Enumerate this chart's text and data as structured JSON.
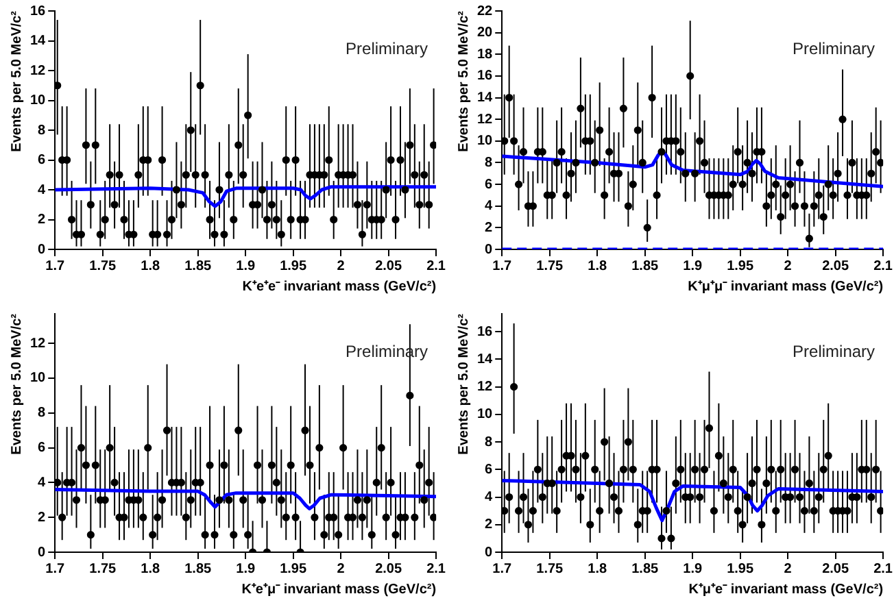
{
  "chart_data": [
    {
      "type": "scatter",
      "xlabel": "K⁺e⁺e⁻ invariant mass (GeV/c²)",
      "ylabel": "Events per 5.0 MeV/c²",
      "annotations": [
        "Preliminary"
      ],
      "xlim": [
        1.7,
        2.1
      ],
      "xticks": [
        1.7,
        1.75,
        1.8,
        1.85,
        1.9,
        1.95,
        2,
        2.05,
        2.1
      ],
      "ylim": [
        0,
        16
      ],
      "yticks": [
        0,
        2,
        4,
        6,
        8,
        10,
        12,
        14,
        16
      ],
      "x": [
        1.7025,
        1.7075,
        1.7125,
        1.7175,
        1.7225,
        1.7275,
        1.7325,
        1.7375,
        1.7425,
        1.7475,
        1.7525,
        1.7575,
        1.7625,
        1.7675,
        1.7725,
        1.7775,
        1.7825,
        1.7875,
        1.7925,
        1.7975,
        1.8025,
        1.8075,
        1.8125,
        1.8175,
        1.8225,
        1.8275,
        1.8325,
        1.8375,
        1.8425,
        1.8475,
        1.8525,
        1.8575,
        1.8625,
        1.8675,
        1.8725,
        1.8775,
        1.8825,
        1.8875,
        1.8925,
        1.8975,
        1.9025,
        1.9075,
        1.9125,
        1.9175,
        1.9225,
        1.9275,
        1.9325,
        1.9375,
        1.9425,
        1.9475,
        1.9525,
        1.9575,
        1.9625,
        1.9675,
        1.9725,
        1.9775,
        1.9825,
        1.9875,
        1.9925,
        1.9975,
        2.0025,
        2.0075,
        2.0125,
        2.0175,
        2.0225,
        2.0275,
        2.0325,
        2.0375,
        2.0425,
        2.0475,
        2.0525,
        2.0575,
        2.0625,
        2.0675,
        2.0725,
        2.0775,
        2.0825,
        2.0875,
        2.0925,
        2.0975
      ],
      "series": [
        {
          "marker": "circle",
          "color": "#000000",
          "values": [
            11,
            6,
            6,
            2,
            1,
            1,
            7,
            3,
            7,
            1,
            2,
            5,
            3,
            5,
            2,
            1,
            1,
            5,
            6,
            6,
            1,
            1,
            6,
            1,
            2,
            4,
            3,
            5,
            8,
            5,
            11,
            5,
            2,
            1,
            4,
            1,
            5,
            2,
            7,
            5,
            9,
            3,
            3,
            4,
            2,
            3,
            2,
            1,
            6,
            2,
            6,
            2,
            2,
            5,
            5,
            5,
            5,
            6,
            2,
            5,
            5,
            5,
            5,
            3,
            1,
            3,
            2,
            2,
            2,
            4,
            6,
            2,
            6,
            4,
            7,
            5,
            3,
            5,
            3,
            7
          ],
          "errors": [
            [
              7.7,
              15.4
            ],
            [
              3.6,
              9.6
            ],
            [
              3.6,
              9.6
            ],
            [
              0.7,
              4.6
            ],
            [
              0.2,
              3.3
            ],
            [
              0.2,
              3.3
            ],
            [
              4.4,
              10.8
            ],
            [
              1.4,
              5.9
            ],
            [
              4.4,
              10.8
            ],
            [
              0.2,
              3.3
            ],
            [
              0.7,
              4.6
            ],
            [
              2.8,
              8.4
            ],
            [
              1.4,
              5.9
            ],
            [
              2.8,
              8.4
            ],
            [
              0.7,
              4.6
            ],
            [
              0.2,
              3.3
            ],
            [
              0.2,
              3.3
            ],
            [
              2.8,
              8.4
            ],
            [
              3.6,
              9.6
            ],
            [
              3.6,
              9.6
            ],
            [
              0.2,
              3.3
            ],
            [
              0.2,
              3.3
            ],
            [
              3.6,
              9.6
            ],
            [
              0.2,
              3.3
            ],
            [
              0.7,
              4.6
            ],
            [
              2.1,
              7.2
            ],
            [
              1.4,
              5.9
            ],
            [
              2.8,
              8.4
            ],
            [
              5.2,
              11.9
            ],
            [
              2.8,
              8.4
            ],
            [
              7.7,
              15.4
            ],
            [
              2.8,
              8.4
            ],
            [
              0.7,
              4.6
            ],
            [
              0.2,
              3.3
            ],
            [
              2.1,
              7.2
            ],
            [
              0.2,
              3.3
            ],
            [
              2.8,
              8.4
            ],
            [
              0.7,
              4.6
            ],
            [
              4.4,
              10.8
            ],
            [
              2.8,
              8.4
            ],
            [
              6.1,
              13.1
            ],
            [
              1.4,
              5.9
            ],
            [
              1.4,
              5.9
            ],
            [
              2.1,
              7.2
            ],
            [
              0.7,
              4.6
            ],
            [
              1.4,
              5.9
            ],
            [
              0.7,
              4.6
            ],
            [
              0.2,
              3.3
            ],
            [
              3.6,
              9.6
            ],
            [
              0.7,
              4.6
            ],
            [
              3.6,
              9.6
            ],
            [
              0.7,
              4.6
            ],
            [
              0.7,
              4.6
            ],
            [
              2.8,
              8.4
            ],
            [
              2.8,
              8.4
            ],
            [
              2.8,
              8.4
            ],
            [
              2.8,
              8.4
            ],
            [
              3.6,
              9.6
            ],
            [
              0.7,
              4.6
            ],
            [
              2.8,
              8.4
            ],
            [
              2.8,
              8.4
            ],
            [
              2.8,
              8.4
            ],
            [
              2.8,
              8.4
            ],
            [
              1.4,
              5.9
            ],
            [
              0.2,
              3.3
            ],
            [
              1.4,
              5.9
            ],
            [
              0.7,
              4.6
            ],
            [
              0.7,
              4.6
            ],
            [
              0.7,
              4.6
            ],
            [
              2.1,
              7.2
            ],
            [
              3.6,
              9.6
            ],
            [
              0.7,
              4.6
            ],
            [
              3.6,
              9.6
            ],
            [
              2.1,
              7.2
            ],
            [
              4.4,
              10.8
            ],
            [
              2.8,
              8.4
            ],
            [
              1.4,
              5.9
            ],
            [
              2.8,
              8.4
            ],
            [
              1.4,
              5.9
            ],
            [
              4.4,
              10.8
            ]
          ]
        },
        {
          "type": "line",
          "marker": "none",
          "color": "#0000ff",
          "x": [
            1.7,
            1.8,
            1.84,
            1.855,
            1.862,
            1.868,
            1.874,
            1.88,
            1.89,
            1.95,
            1.958,
            1.963,
            1.968,
            1.973,
            1.98,
            1.99,
            2.1
          ],
          "values": [
            4.0,
            4.1,
            4.0,
            3.8,
            3.2,
            2.9,
            3.2,
            3.9,
            4.1,
            4.1,
            4.0,
            3.6,
            3.4,
            3.6,
            4.0,
            4.2,
            4.2
          ]
        }
      ]
    },
    {
      "type": "scatter",
      "xlabel": "K⁺μ⁺μ⁻ invariant mass (GeV/c²)",
      "ylabel": "Events per 5.0 MeV/c²",
      "annotations": [
        "Preliminary"
      ],
      "xlim": [
        1.7,
        2.1
      ],
      "xticks": [
        1.7,
        1.75,
        1.8,
        1.85,
        1.9,
        1.95,
        2,
        2.05,
        2.1
      ],
      "ylim": [
        0,
        22
      ],
      "yticks": [
        0,
        2,
        4,
        6,
        8,
        10,
        12,
        14,
        16,
        18,
        20,
        22
      ],
      "x": [
        1.7025,
        1.7075,
        1.7125,
        1.7175,
        1.7225,
        1.7275,
        1.7325,
        1.7375,
        1.7425,
        1.7475,
        1.7525,
        1.7575,
        1.7625,
        1.7675,
        1.7725,
        1.7775,
        1.7825,
        1.7875,
        1.7925,
        1.7975,
        1.8025,
        1.8075,
        1.8125,
        1.8175,
        1.8225,
        1.8275,
        1.8325,
        1.8375,
        1.8425,
        1.8475,
        1.8525,
        1.8575,
        1.8625,
        1.8675,
        1.8725,
        1.8775,
        1.8825,
        1.8875,
        1.8925,
        1.8975,
        1.9025,
        1.9075,
        1.9125,
        1.9175,
        1.9225,
        1.9275,
        1.9325,
        1.9375,
        1.9425,
        1.9475,
        1.9525,
        1.9575,
        1.9625,
        1.9675,
        1.9725,
        1.9775,
        1.9825,
        1.9875,
        1.9925,
        1.9975,
        2.0025,
        2.0075,
        2.0125,
        2.0175,
        2.0225,
        2.0275,
        2.0325,
        2.0375,
        2.0425,
        2.0475,
        2.0525,
        2.0575,
        2.0625,
        2.0675,
        2.0725,
        2.0775,
        2.0825,
        2.0875,
        2.0925,
        2.0975
      ],
      "series": [
        {
          "marker": "circle",
          "color": "#000000",
          "values": [
            10,
            14,
            10,
            6,
            9,
            4,
            4,
            9,
            9,
            5,
            5,
            8,
            9,
            5,
            7,
            8,
            13,
            10,
            10,
            8,
            11,
            5,
            9,
            7,
            7,
            13,
            4,
            6,
            11,
            8,
            2,
            14,
            5,
            9,
            10,
            10,
            10,
            9,
            7,
            16,
            7,
            10,
            8,
            5,
            5,
            5,
            5,
            5,
            6,
            9,
            6,
            8,
            7,
            9,
            9,
            4,
            5,
            6,
            3,
            5,
            6,
            4,
            8,
            4,
            1,
            4,
            5,
            3,
            6,
            5,
            7,
            12,
            5,
            8,
            5,
            5,
            5,
            7,
            9,
            8
          ],
          "errors": [
            [
              6.9,
              14.3
            ],
            [
              10.3,
              18.8
            ],
            [
              6.9,
              14.3
            ],
            [
              3.6,
              9.6
            ],
            [
              6.1,
              13.1
            ],
            [
              2.1,
              7.2
            ],
            [
              2.1,
              7.2
            ],
            [
              6.1,
              13.1
            ],
            [
              6.1,
              13.1
            ],
            [
              2.8,
              8.4
            ],
            [
              2.8,
              8.4
            ],
            [
              5.2,
              11.9
            ],
            [
              6.1,
              13.1
            ],
            [
              2.8,
              8.4
            ],
            [
              4.4,
              10.8
            ],
            [
              5.2,
              11.9
            ],
            [
              9.4,
              17.7
            ],
            [
              6.9,
              14.3
            ],
            [
              6.9,
              14.3
            ],
            [
              5.2,
              11.9
            ],
            [
              7.7,
              15.4
            ],
            [
              2.8,
              8.4
            ],
            [
              6.1,
              13.1
            ],
            [
              4.4,
              10.8
            ],
            [
              4.4,
              10.8
            ],
            [
              9.4,
              17.7
            ],
            [
              2.1,
              7.2
            ],
            [
              3.6,
              9.6
            ],
            [
              7.7,
              15.4
            ],
            [
              5.2,
              11.9
            ],
            [
              0.7,
              4.6
            ],
            [
              10.3,
              18.8
            ],
            [
              2.8,
              8.4
            ],
            [
              6.1,
              13.1
            ],
            [
              6.9,
              14.3
            ],
            [
              6.9,
              14.3
            ],
            [
              6.9,
              14.3
            ],
            [
              6.1,
              13.1
            ],
            [
              4.4,
              10.8
            ],
            [
              12.0,
              21.1
            ],
            [
              4.4,
              10.8
            ],
            [
              6.9,
              14.3
            ],
            [
              5.2,
              11.9
            ],
            [
              2.8,
              8.4
            ],
            [
              2.8,
              8.4
            ],
            [
              2.8,
              8.4
            ],
            [
              2.8,
              8.4
            ],
            [
              2.8,
              8.4
            ],
            [
              3.6,
              9.6
            ],
            [
              6.1,
              13.1
            ],
            [
              3.6,
              9.6
            ],
            [
              5.2,
              11.9
            ],
            [
              4.4,
              10.8
            ],
            [
              6.1,
              13.1
            ],
            [
              6.1,
              13.1
            ],
            [
              2.1,
              7.2
            ],
            [
              2.8,
              8.4
            ],
            [
              3.6,
              9.6
            ],
            [
              1.4,
              5.9
            ],
            [
              2.8,
              8.4
            ],
            [
              3.6,
              9.6
            ],
            [
              2.1,
              7.2
            ],
            [
              5.2,
              11.9
            ],
            [
              2.1,
              7.2
            ],
            [
              0.2,
              3.3
            ],
            [
              2.1,
              7.2
            ],
            [
              2.8,
              8.4
            ],
            [
              1.4,
              5.9
            ],
            [
              3.6,
              9.6
            ],
            [
              2.8,
              8.4
            ],
            [
              4.4,
              10.8
            ],
            [
              8.6,
              16.6
            ],
            [
              2.8,
              8.4
            ],
            [
              5.2,
              11.9
            ],
            [
              2.8,
              8.4
            ],
            [
              2.8,
              8.4
            ],
            [
              2.8,
              8.4
            ],
            [
              4.4,
              10.8
            ],
            [
              6.1,
              13.1
            ],
            [
              5.2,
              11.9
            ]
          ]
        },
        {
          "type": "line",
          "marker": "none",
          "color": "#0000ff",
          "x": [
            1.7,
            1.8,
            1.85,
            1.858,
            1.864,
            1.868,
            1.872,
            1.878,
            1.89,
            1.95,
            1.958,
            1.963,
            1.967,
            1.971,
            1.976,
            1.99,
            2.1
          ],
          "values": [
            8.6,
            8.0,
            7.6,
            7.8,
            8.7,
            9.1,
            8.7,
            7.8,
            7.3,
            6.9,
            7.2,
            7.9,
            8.2,
            7.9,
            7.2,
            6.6,
            5.8
          ]
        },
        {
          "type": "line",
          "marker": "none",
          "line_style": "dashed",
          "color": "#0000ff",
          "x": [
            1.7,
            2.1
          ],
          "values": [
            0,
            0
          ]
        }
      ]
    },
    {
      "type": "scatter",
      "xlabel": "K⁺e⁺μ⁻ invariant mass (GeV/c²)",
      "ylabel": "Events per 5.0 MeV/c²",
      "annotations": [
        "Preliminary"
      ],
      "xlim": [
        1.7,
        2.1
      ],
      "xticks": [
        1.7,
        1.75,
        1.8,
        1.85,
        1.9,
        1.95,
        2,
        2.05,
        2.1
      ],
      "ylim": [
        0,
        13.7
      ],
      "yticks": [
        0,
        2,
        4,
        6,
        8,
        10,
        12
      ],
      "x": [
        1.7025,
        1.7075,
        1.7125,
        1.7175,
        1.7225,
        1.7275,
        1.7325,
        1.7375,
        1.7425,
        1.7475,
        1.7525,
        1.7575,
        1.7625,
        1.7675,
        1.7725,
        1.7775,
        1.7825,
        1.7875,
        1.7925,
        1.7975,
        1.8025,
        1.8075,
        1.8125,
        1.8175,
        1.8225,
        1.8275,
        1.8325,
        1.8375,
        1.8425,
        1.8475,
        1.8525,
        1.8575,
        1.8625,
        1.8675,
        1.8725,
        1.8775,
        1.8825,
        1.8875,
        1.8925,
        1.8975,
        1.9025,
        1.9075,
        1.9125,
        1.9175,
        1.9225,
        1.9275,
        1.9325,
        1.9375,
        1.9425,
        1.9475,
        1.9525,
        1.9575,
        1.9625,
        1.9675,
        1.9725,
        1.9775,
        1.9825,
        1.9875,
        1.9925,
        1.9975,
        2.0025,
        2.0075,
        2.0125,
        2.0175,
        2.0225,
        2.0275,
        2.0325,
        2.0375,
        2.0425,
        2.0475,
        2.0525,
        2.0575,
        2.0625,
        2.0675,
        2.0725,
        2.0775,
        2.0825,
        2.0875,
        2.0925,
        2.0975
      ],
      "series": [
        {
          "marker": "circle",
          "color": "#000000",
          "values": [
            4,
            2,
            4,
            4,
            3,
            6,
            5,
            1,
            5,
            3,
            3,
            6,
            4,
            2,
            2,
            3,
            3,
            3,
            2,
            6,
            1,
            2,
            3,
            7,
            4,
            4,
            4,
            2,
            3,
            4,
            4,
            1,
            5,
            1,
            3,
            5,
            3,
            1,
            7,
            3,
            1,
            0,
            5,
            3,
            0,
            5,
            4,
            3,
            2,
            5,
            2,
            0,
            7,
            5,
            2,
            6,
            1,
            2,
            2,
            1,
            6,
            2,
            2,
            3,
            2,
            3,
            1,
            4,
            6,
            2,
            4,
            1,
            2,
            2,
            9,
            2,
            5,
            3,
            4,
            2
          ],
          "errors": [
            [
              2.1,
              7.2
            ],
            [
              0.7,
              4.6
            ],
            [
              2.1,
              7.2
            ],
            [
              2.1,
              7.2
            ],
            [
              1.4,
              5.9
            ],
            [
              3.6,
              9.6
            ],
            [
              2.8,
              8.4
            ],
            [
              0.2,
              3.3
            ],
            [
              2.8,
              8.4
            ],
            [
              1.4,
              5.9
            ],
            [
              1.4,
              5.9
            ],
            [
              3.6,
              9.6
            ],
            [
              2.1,
              7.2
            ],
            [
              0.7,
              4.6
            ],
            [
              0.7,
              4.6
            ],
            [
              1.4,
              5.9
            ],
            [
              1.4,
              5.9
            ],
            [
              1.4,
              5.9
            ],
            [
              0.7,
              4.6
            ],
            [
              3.6,
              9.6
            ],
            [
              0.2,
              3.3
            ],
            [
              0.7,
              4.6
            ],
            [
              1.4,
              5.9
            ],
            [
              4.4,
              10.8
            ],
            [
              2.1,
              7.2
            ],
            [
              2.1,
              7.2
            ],
            [
              2.1,
              7.2
            ],
            [
              0.7,
              4.6
            ],
            [
              1.4,
              5.9
            ],
            [
              2.1,
              7.2
            ],
            [
              2.1,
              7.2
            ],
            [
              0.2,
              3.3
            ],
            [
              2.8,
              8.4
            ],
            [
              0.2,
              3.3
            ],
            [
              1.4,
              5.9
            ],
            [
              2.8,
              8.4
            ],
            [
              1.4,
              5.9
            ],
            [
              0.2,
              3.3
            ],
            [
              4.4,
              10.8
            ],
            [
              1.4,
              5.9
            ],
            [
              0.2,
              3.3
            ],
            [
              0,
              1.8
            ],
            [
              2.8,
              8.4
            ],
            [
              1.4,
              5.9
            ],
            [
              0,
              1.8
            ],
            [
              2.8,
              8.4
            ],
            [
              2.1,
              7.2
            ],
            [
              1.4,
              5.9
            ],
            [
              0.7,
              4.6
            ],
            [
              2.8,
              8.4
            ],
            [
              0.7,
              4.6
            ],
            [
              0,
              1.8
            ],
            [
              4.4,
              10.8
            ],
            [
              2.8,
              8.4
            ],
            [
              0.7,
              4.6
            ],
            [
              3.6,
              9.6
            ],
            [
              0.2,
              3.3
            ],
            [
              0.7,
              4.6
            ],
            [
              0.7,
              4.6
            ],
            [
              0.2,
              3.3
            ],
            [
              3.6,
              9.6
            ],
            [
              0.7,
              4.6
            ],
            [
              0.7,
              4.6
            ],
            [
              1.4,
              5.9
            ],
            [
              0.7,
              4.6
            ],
            [
              1.4,
              5.9
            ],
            [
              0.2,
              3.3
            ],
            [
              2.1,
              7.2
            ],
            [
              3.6,
              9.6
            ],
            [
              0.7,
              4.6
            ],
            [
              2.1,
              7.2
            ],
            [
              0.2,
              3.3
            ],
            [
              0.7,
              4.6
            ],
            [
              0.7,
              4.6
            ],
            [
              6.1,
              13.1
            ],
            [
              0.7,
              4.6
            ],
            [
              2.8,
              8.4
            ],
            [
              1.4,
              5.9
            ],
            [
              2.1,
              7.2
            ],
            [
              0.7,
              4.6
            ]
          ]
        },
        {
          "type": "line",
          "marker": "none",
          "color": "#0000ff",
          "x": [
            1.7,
            1.8,
            1.85,
            1.857,
            1.863,
            1.868,
            1.873,
            1.88,
            1.89,
            1.95,
            1.957,
            1.963,
            1.967,
            1.972,
            1.978,
            1.99,
            2.1
          ],
          "values": [
            3.6,
            3.5,
            3.5,
            3.3,
            2.9,
            2.6,
            2.9,
            3.3,
            3.4,
            3.4,
            3.1,
            2.7,
            2.5,
            2.7,
            3.1,
            3.3,
            3.2
          ]
        }
      ]
    },
    {
      "type": "scatter",
      "xlabel": "K⁺μ⁺e⁻ invariant mass (GeV/c²)",
      "ylabel": "Events per 5.0 MeV/c²",
      "annotations": [
        "Preliminary"
      ],
      "xlim": [
        1.7,
        2.1
      ],
      "xticks": [
        1.7,
        1.75,
        1.8,
        1.85,
        1.9,
        1.95,
        2,
        2.05,
        2.1
      ],
      "ylim": [
        0,
        17.3
      ],
      "yticks": [
        0,
        2,
        4,
        6,
        8,
        10,
        12,
        14,
        16
      ],
      "x": [
        1.7025,
        1.7075,
        1.7125,
        1.7175,
        1.7225,
        1.7275,
        1.7325,
        1.7375,
        1.7425,
        1.7475,
        1.7525,
        1.7575,
        1.7625,
        1.7675,
        1.7725,
        1.7775,
        1.7825,
        1.7875,
        1.7925,
        1.7975,
        1.8025,
        1.8075,
        1.8125,
        1.8175,
        1.8225,
        1.8275,
        1.8325,
        1.8375,
        1.8425,
        1.8475,
        1.8525,
        1.8575,
        1.8625,
        1.8675,
        1.8725,
        1.8775,
        1.8825,
        1.8875,
        1.8925,
        1.8975,
        1.9025,
        1.9075,
        1.9125,
        1.9175,
        1.9225,
        1.9275,
        1.9325,
        1.9375,
        1.9425,
        1.9475,
        1.9525,
        1.9575,
        1.9625,
        1.9675,
        1.9725,
        1.9775,
        1.9825,
        1.9875,
        1.9925,
        1.9975,
        2.0025,
        2.0075,
        2.0125,
        2.0175,
        2.0225,
        2.0275,
        2.0325,
        2.0375,
        2.0425,
        2.0475,
        2.0525,
        2.0575,
        2.0625,
        2.0675,
        2.0725,
        2.0775,
        2.0825,
        2.0875,
        2.0925,
        2.0975
      ],
      "series": [
        {
          "marker": "circle",
          "color": "#000000",
          "values": [
            3,
            4,
            12,
            3,
            4,
            2,
            3,
            6,
            4,
            5,
            5,
            3,
            6,
            7,
            7,
            6,
            4,
            7,
            2,
            6,
            3,
            8,
            5,
            4,
            3,
            6,
            8,
            6,
            2,
            3,
            3,
            6,
            6,
            1,
            3,
            1,
            5,
            6,
            4,
            4,
            6,
            4,
            6,
            9,
            3,
            7,
            5,
            4,
            6,
            3,
            2,
            4,
            5,
            6,
            2,
            5,
            6,
            3,
            6,
            4,
            4,
            6,
            4,
            3,
            5,
            3,
            4,
            6,
            7,
            3,
            3,
            3,
            3,
            4,
            4,
            6,
            6,
            4,
            6,
            3
          ],
          "errors": [
            [
              1.4,
              5.9
            ],
            [
              2.1,
              7.2
            ],
            [
              8.6,
              16.6
            ],
            [
              1.4,
              5.9
            ],
            [
              2.1,
              7.2
            ],
            [
              0.7,
              4.6
            ],
            [
              1.4,
              5.9
            ],
            [
              3.6,
              9.6
            ],
            [
              2.1,
              7.2
            ],
            [
              2.8,
              8.4
            ],
            [
              2.8,
              8.4
            ],
            [
              1.4,
              5.9
            ],
            [
              3.6,
              9.6
            ],
            [
              4.4,
              10.8
            ],
            [
              4.4,
              10.8
            ],
            [
              3.6,
              9.6
            ],
            [
              2.1,
              7.2
            ],
            [
              4.4,
              10.8
            ],
            [
              0.7,
              4.6
            ],
            [
              3.6,
              9.6
            ],
            [
              1.4,
              5.9
            ],
            [
              5.2,
              11.9
            ],
            [
              2.8,
              8.4
            ],
            [
              2.1,
              7.2
            ],
            [
              1.4,
              5.9
            ],
            [
              3.6,
              9.6
            ],
            [
              5.2,
              11.9
            ],
            [
              3.6,
              9.6
            ],
            [
              0.7,
              4.6
            ],
            [
              1.4,
              5.9
            ],
            [
              1.4,
              5.9
            ],
            [
              3.6,
              9.6
            ],
            [
              3.6,
              9.6
            ],
            [
              0.2,
              3.3
            ],
            [
              1.4,
              5.9
            ],
            [
              0.2,
              3.3
            ],
            [
              2.8,
              8.4
            ],
            [
              3.6,
              9.6
            ],
            [
              2.1,
              7.2
            ],
            [
              2.1,
              7.2
            ],
            [
              3.6,
              9.6
            ],
            [
              2.1,
              7.2
            ],
            [
              3.6,
              9.6
            ],
            [
              6.1,
              13.1
            ],
            [
              1.4,
              5.9
            ],
            [
              4.4,
              10.8
            ],
            [
              2.8,
              8.4
            ],
            [
              2.1,
              7.2
            ],
            [
              3.6,
              9.6
            ],
            [
              1.4,
              5.9
            ],
            [
              0.7,
              4.6
            ],
            [
              2.1,
              7.2
            ],
            [
              2.8,
              8.4
            ],
            [
              3.6,
              9.6
            ],
            [
              0.7,
              4.6
            ],
            [
              2.8,
              8.4
            ],
            [
              3.6,
              9.6
            ],
            [
              1.4,
              5.9
            ],
            [
              3.6,
              9.6
            ],
            [
              2.1,
              7.2
            ],
            [
              2.1,
              7.2
            ],
            [
              3.6,
              9.6
            ],
            [
              2.1,
              7.2
            ],
            [
              1.4,
              5.9
            ],
            [
              2.8,
              8.4
            ],
            [
              1.4,
              5.9
            ],
            [
              2.1,
              7.2
            ],
            [
              3.6,
              9.6
            ],
            [
              4.4,
              10.8
            ],
            [
              1.4,
              5.9
            ],
            [
              1.4,
              5.9
            ],
            [
              1.4,
              5.9
            ],
            [
              1.4,
              5.9
            ],
            [
              2.1,
              7.2
            ],
            [
              2.1,
              7.2
            ],
            [
              3.6,
              9.6
            ],
            [
              3.6,
              9.6
            ],
            [
              2.1,
              7.2
            ],
            [
              3.6,
              9.6
            ],
            [
              1.4,
              5.9
            ]
          ]
        },
        {
          "type": "line",
          "marker": "none",
          "color": "#0000ff",
          "x": [
            1.7,
            1.8,
            1.845,
            1.855,
            1.862,
            1.868,
            1.874,
            1.881,
            1.89,
            1.95,
            1.958,
            1.963,
            1.968,
            1.973,
            1.979,
            1.99,
            2.1
          ],
          "values": [
            5.2,
            5.0,
            4.9,
            4.4,
            3.2,
            2.3,
            3.2,
            4.4,
            4.8,
            4.7,
            4.1,
            3.4,
            3.0,
            3.4,
            4.1,
            4.6,
            4.4
          ]
        }
      ]
    }
  ]
}
